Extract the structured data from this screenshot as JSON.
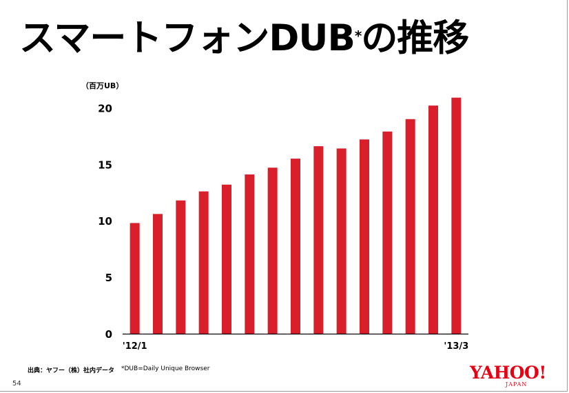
{
  "slide": {
    "title": "スマートフォンDUB",
    "title_sup": "*",
    "title_suffix": "の推移",
    "unit_label": "（百万UB）",
    "page_number": "54"
  },
  "footnotes": {
    "source": "出典：ヤフー（株）社内データ",
    "dub_definition": "*DUB=Daily Unique Browser"
  },
  "logo": {
    "main": "YAHOO!",
    "sub": "JAPAN"
  },
  "colors": {
    "bar": "#d9202a",
    "axis": "#000000",
    "logo": "#e60012"
  },
  "chart_data": {
    "type": "bar",
    "title": "スマートフォンDUBの推移",
    "ylabel": "（百万UB）",
    "xlabel": "",
    "ylim": [
      0,
      21
    ],
    "yticks": [
      0,
      5,
      10,
      15,
      20
    ],
    "grid": false,
    "categories": [
      "'12/1",
      "",
      "",
      "",
      "",
      "",
      "",
      "",
      "",
      "",
      "",
      "",
      "",
      "",
      "'13/3"
    ],
    "values": [
      9.8,
      10.6,
      11.8,
      12.6,
      13.2,
      14.1,
      14.7,
      15.5,
      16.6,
      16.4,
      17.2,
      17.9,
      19.0,
      20.2,
      20.9
    ]
  }
}
